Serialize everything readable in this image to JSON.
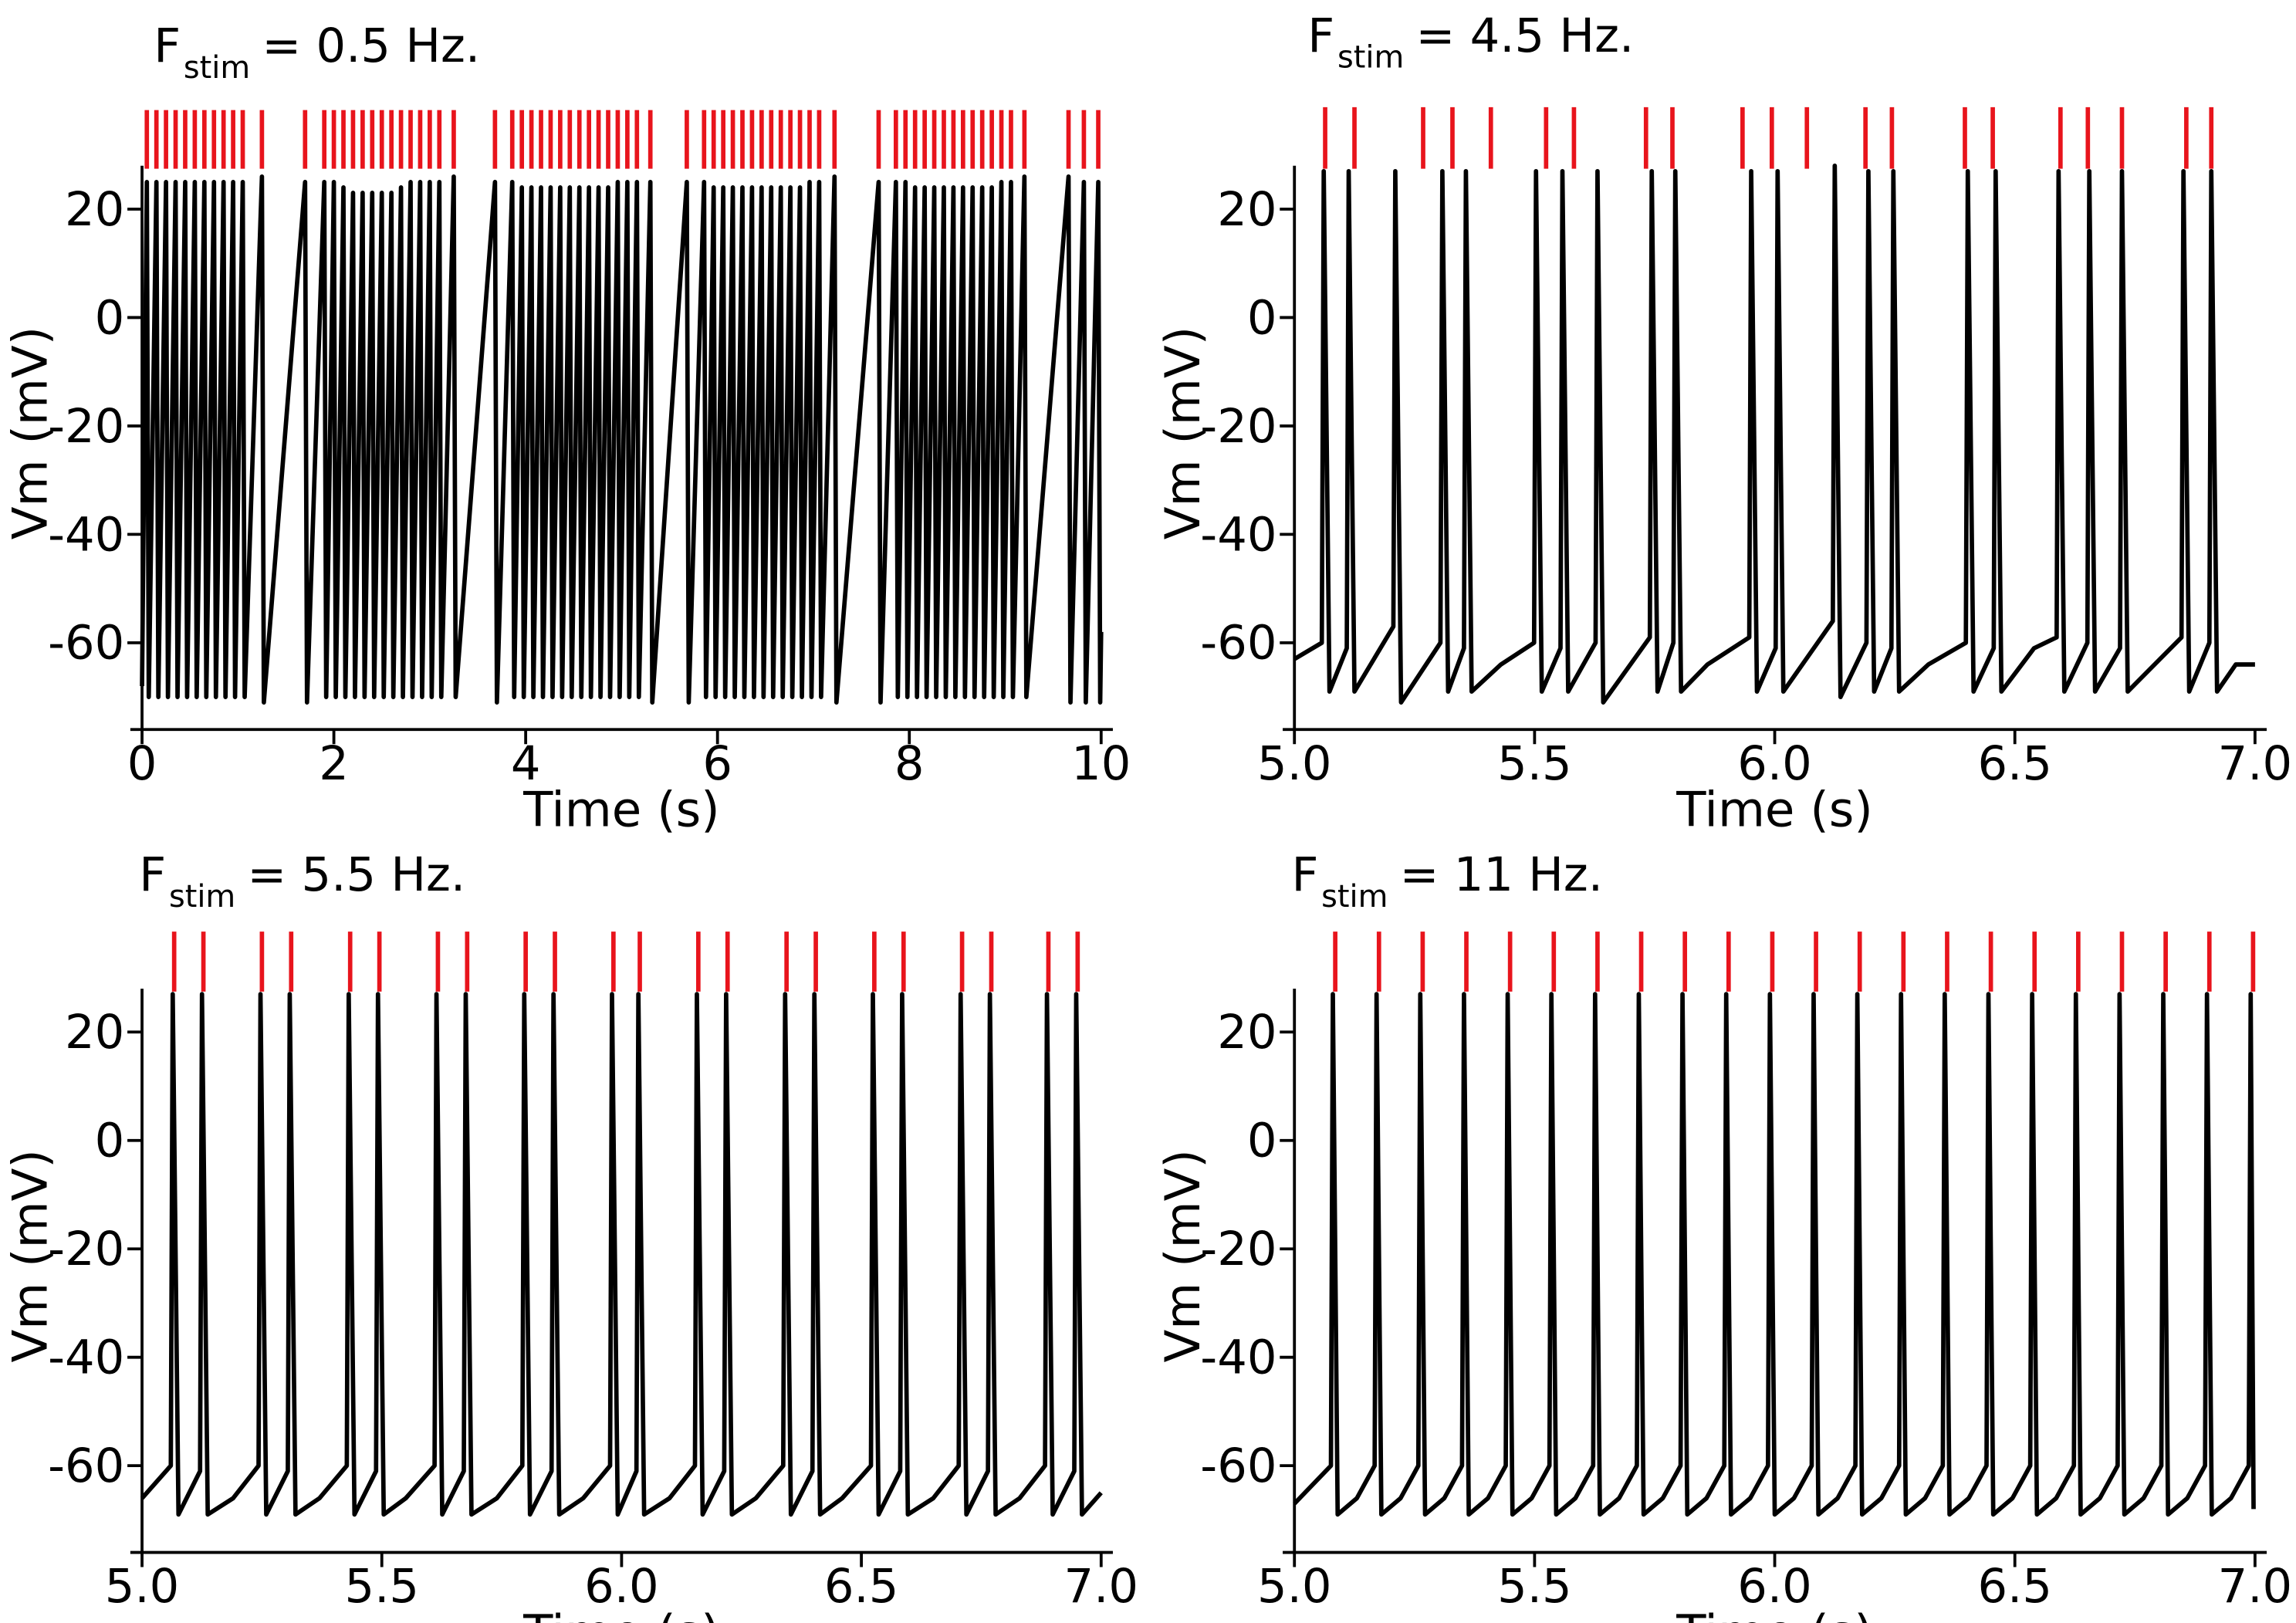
{
  "chart_data": [
    {
      "type": "line",
      "title": "F",
      "title_subscript": "stim",
      "title_suffix": "= 0.5 Hz.",
      "xlabel": "Time (s)",
      "ylabel": "Vm (mV)",
      "xlim": [
        0,
        10
      ],
      "xticks": [
        0,
        2,
        4,
        6,
        8,
        10
      ],
      "ylim": [
        -76,
        28
      ],
      "yticks": [
        -60,
        -40,
        -20,
        0,
        20
      ],
      "stim_color": "#e8141c",
      "stim_times": [
        0.05,
        0.15,
        0.25,
        0.35,
        0.45,
        0.55,
        0.65,
        0.75,
        0.85,
        0.95,
        1.05,
        1.25,
        1.7,
        1.9,
        2.0,
        2.1,
        2.2,
        2.3,
        2.4,
        2.5,
        2.6,
        2.7,
        2.8,
        2.9,
        3.0,
        3.1,
        3.25,
        3.68,
        3.86,
        3.96,
        4.06,
        4.16,
        4.26,
        4.36,
        4.46,
        4.56,
        4.66,
        4.76,
        4.86,
        4.96,
        5.06,
        5.16,
        5.3,
        5.68,
        5.86,
        5.96,
        6.06,
        6.16,
        6.26,
        6.36,
        6.46,
        6.56,
        6.66,
        6.76,
        6.86,
        6.96,
        7.06,
        7.22,
        7.68,
        7.86,
        7.96,
        8.06,
        8.16,
        8.26,
        8.36,
        8.46,
        8.56,
        8.66,
        8.76,
        8.86,
        8.96,
        9.06,
        9.2,
        9.66,
        9.82,
        9.97
      ],
      "series": [
        {
          "color": "#000000",
          "x": [
            0,
            0.05,
            0.07,
            0.15,
            0.17,
            0.25,
            0.27,
            0.35,
            0.37,
            0.45,
            0.47,
            0.55,
            0.57,
            0.65,
            0.67,
            0.75,
            0.77,
            0.85,
            0.87,
            0.95,
            0.97,
            1.05,
            1.07,
            1.25,
            1.27,
            1.7,
            1.72,
            1.9,
            1.92,
            2.0,
            2.02,
            2.1,
            2.12,
            2.2,
            2.22,
            2.3,
            2.32,
            2.4,
            2.42,
            2.5,
            2.52,
            2.6,
            2.62,
            2.7,
            2.72,
            2.8,
            2.82,
            2.9,
            2.92,
            3.0,
            3.02,
            3.1,
            3.12,
            3.25,
            3.27,
            3.68,
            3.7,
            3.86,
            3.88,
            3.96,
            3.98,
            4.06,
            4.08,
            4.16,
            4.18,
            4.26,
            4.28,
            4.36,
            4.38,
            4.46,
            4.48,
            4.56,
            4.58,
            4.66,
            4.68,
            4.76,
            4.78,
            4.86,
            4.88,
            4.96,
            4.98,
            5.06,
            5.08,
            5.16,
            5.18,
            5.3,
            5.32,
            5.68,
            5.7,
            5.86,
            5.88,
            5.96,
            5.98,
            6.06,
            6.08,
            6.16,
            6.18,
            6.26,
            6.28,
            6.36,
            6.38,
            6.46,
            6.48,
            6.56,
            6.58,
            6.66,
            6.68,
            6.76,
            6.78,
            6.86,
            6.88,
            6.96,
            6.98,
            7.06,
            7.08,
            7.22,
            7.24,
            7.68,
            7.7,
            7.86,
            7.88,
            7.96,
            7.98,
            8.06,
            8.08,
            8.16,
            8.18,
            8.26,
            8.28,
            8.36,
            8.38,
            8.46,
            8.48,
            8.56,
            8.58,
            8.66,
            8.68,
            8.76,
            8.78,
            8.86,
            8.88,
            8.96,
            8.98,
            9.06,
            9.08,
            9.2,
            9.22,
            9.66,
            9.68,
            9.82,
            9.84,
            9.97,
            9.99,
            10
          ],
          "values": [
            -68,
            25,
            -70,
            25,
            -70,
            25,
            -70,
            25,
            -70,
            25,
            -70,
            25,
            -70,
            25,
            -70,
            25,
            -70,
            25,
            -70,
            25,
            -70,
            25,
            -70,
            26,
            -71,
            25,
            -71,
            25,
            -70,
            25,
            -70,
            24,
            -70,
            23,
            -70,
            23,
            -70,
            23,
            -70,
            23,
            -70,
            23,
            -70,
            24,
            -70,
            25,
            -70,
            25,
            -70,
            25,
            -70,
            25,
            -70,
            26,
            -70,
            25,
            -71,
            25,
            -70,
            24,
            -70,
            24,
            -70,
            24,
            -70,
            24,
            -70,
            24,
            -70,
            24,
            -70,
            24,
            -70,
            24,
            -70,
            24,
            -70,
            24,
            -70,
            25,
            -70,
            25,
            -70,
            25,
            -70,
            25,
            -71,
            25,
            -71,
            25,
            -70,
            24,
            -70,
            24,
            -70,
            24,
            -70,
            24,
            -70,
            24,
            -70,
            24,
            -70,
            24,
            -70,
            24,
            -70,
            24,
            -70,
            24,
            -70,
            25,
            -70,
            25,
            -70,
            26,
            -71,
            25,
            -71,
            25,
            -70,
            25,
            -70,
            24,
            -70,
            24,
            -70,
            24,
            -70,
            24,
            -70,
            24,
            -70,
            24,
            -70,
            24,
            -70,
            24,
            -70,
            24,
            -70,
            25,
            -70,
            25,
            -70,
            26,
            -70,
            26,
            -71,
            25,
            -71,
            25,
            -71,
            -58
          ]
        }
      ]
    },
    {
      "type": "line",
      "title": "F",
      "title_subscript": "stim",
      "title_suffix": "= 4.5 Hz.",
      "xlabel": "Time (s)",
      "ylabel": "Vm (mV)",
      "xlim": [
        5,
        7
      ],
      "xticks": [
        {
          "value": 5,
          "label": "5.0"
        },
        5.5,
        {
          "value": 6,
          "label": "6.0"
        },
        6.5,
        {
          "value": 7,
          "label": "7.0"
        }
      ],
      "ylim": [
        -76,
        28
      ],
      "yticks": [
        -60,
        -40,
        -20,
        0,
        20
      ],
      "stim_color": "#e8141c",
      "stim_times": [
        5.064,
        5.125,
        5.268,
        5.329,
        5.409,
        5.524,
        5.582,
        5.732,
        5.787,
        5.933,
        5.994,
        6.067,
        6.189,
        6.244,
        6.396,
        6.454,
        6.595,
        6.652,
        6.723,
        6.857,
        6.909
      ],
      "series": [
        {
          "color": "#000000",
          "x": [
            5.0,
            5.057,
            5.061,
            5.073,
            5.109,
            5.113,
            5.125,
            5.206,
            5.21,
            5.222,
            5.304,
            5.308,
            5.32,
            5.353,
            5.357,
            5.369,
            5.43,
            5.499,
            5.503,
            5.515,
            5.554,
            5.558,
            5.57,
            5.627,
            5.631,
            5.643,
            5.74,
            5.744,
            5.756,
            5.789,
            5.793,
            5.805,
            5.86,
            5.947,
            5.951,
            5.963,
            6.002,
            6.006,
            6.018,
            6.121,
            6.125,
            6.137,
            6.191,
            6.195,
            6.207,
            6.243,
            6.247,
            6.259,
            6.32,
            6.398,
            6.402,
            6.414,
            6.456,
            6.46,
            6.472,
            6.54,
            6.587,
            6.591,
            6.603,
            6.651,
            6.655,
            6.667,
            6.719,
            6.723,
            6.735,
            6.847,
            6.851,
            6.863,
            6.905,
            6.909,
            6.921,
            6.96,
            7.0
          ],
          "values": [
            -63,
            -60,
            27,
            -69,
            -61,
            27,
            -69,
            -57,
            27,
            -71,
            -60,
            27,
            -69,
            -61,
            27,
            -69,
            -64,
            -60,
            27,
            -69,
            -61,
            27,
            -69,
            -60,
            27,
            -71,
            -59,
            27,
            -69,
            -60,
            27,
            -69,
            -64,
            -59,
            27,
            -69,
            -61,
            27,
            -69,
            -56,
            28,
            -70,
            -60,
            27,
            -69,
            -61,
            27,
            -69,
            -64,
            -60,
            27,
            -69,
            -61,
            27,
            -69,
            -61,
            -59,
            27,
            -69,
            -60,
            27,
            -69,
            -61,
            27,
            -69,
            -59,
            27,
            -69,
            -60,
            27,
            -69,
            -64,
            -64
          ]
        }
      ]
    },
    {
      "type": "line",
      "title": "F",
      "title_subscript": "stim",
      "title_suffix": "= 5.5 Hz.",
      "xlabel": "Time (s)",
      "ylabel": "Vm (mV)",
      "xlim": [
        5,
        7
      ],
      "xticks": [
        {
          "value": 5,
          "label": "5.0"
        },
        5.5,
        {
          "value": 6,
          "label": "6.0"
        },
        6.5,
        {
          "value": 7,
          "label": "7.0"
        }
      ],
      "ylim": [
        -76,
        28
      ],
      "yticks": [
        -60,
        -40,
        -20,
        0,
        20
      ],
      "stim_color": "#e8141c",
      "stim_times": [
        5.067,
        5.128,
        5.25,
        5.311,
        5.434,
        5.495,
        5.617,
        5.678,
        5.8,
        5.861,
        5.983,
        6.038,
        6.16,
        6.221,
        6.344,
        6.405,
        6.527,
        6.588,
        6.71,
        6.771,
        6.89,
        6.951
      ],
      "series": [
        {
          "color": "#000000",
          "x": [
            5.0,
            5.06,
            5.064,
            5.076,
            5.121,
            5.125,
            5.137,
            5.19,
            5.243,
            5.247,
            5.259,
            5.304,
            5.308,
            5.32,
            5.37,
            5.427,
            5.431,
            5.443,
            5.488,
            5.492,
            5.504,
            5.55,
            5.61,
            5.614,
            5.626,
            5.671,
            5.675,
            5.687,
            5.74,
            5.793,
            5.797,
            5.809,
            5.854,
            5.858,
            5.87,
            5.92,
            5.976,
            5.98,
            5.992,
            6.031,
            6.035,
            6.047,
            6.1,
            6.153,
            6.157,
            6.169,
            6.214,
            6.218,
            6.23,
            6.28,
            6.337,
            6.341,
            6.353,
            6.398,
            6.402,
            6.414,
            6.46,
            6.52,
            6.524,
            6.536,
            6.581,
            6.585,
            6.597,
            6.65,
            6.703,
            6.707,
            6.719,
            6.764,
            6.768,
            6.78,
            6.83,
            6.883,
            6.887,
            6.899,
            6.944,
            6.948,
            6.96,
            7.0
          ],
          "values": [
            -66,
            -60,
            27,
            -69,
            -61,
            27,
            -69,
            -66,
            -60,
            27,
            -69,
            -61,
            27,
            -69,
            -66,
            -60,
            27,
            -69,
            -61,
            27,
            -69,
            -66,
            -60,
            27,
            -69,
            -61,
            27,
            -69,
            -66,
            -60,
            27,
            -69,
            -61,
            27,
            -69,
            -66,
            -60,
            27,
            -69,
            -61,
            27,
            -69,
            -66,
            -60,
            27,
            -69,
            -61,
            27,
            -69,
            -66,
            -60,
            27,
            -69,
            -61,
            27,
            -69,
            -66,
            -60,
            27,
            -69,
            -61,
            27,
            -69,
            -66,
            -60,
            27,
            -69,
            -61,
            27,
            -69,
            -66,
            -60,
            27,
            -69,
            -61,
            27,
            -69,
            -65
          ]
        }
      ]
    },
    {
      "type": "line",
      "title": "F",
      "title_subscript": "stim",
      "title_suffix": "= 11 Hz.",
      "xlabel": "Time (s)",
      "ylabel": "Vm (mV)",
      "xlim": [
        5,
        7
      ],
      "xticks": [
        {
          "value": 5,
          "label": "5.0"
        },
        5.5,
        {
          "value": 6,
          "label": "6.0"
        },
        6.5,
        {
          "value": 7,
          "label": "7.0"
        }
      ],
      "ylim": [
        -76,
        28
      ],
      "yticks": [
        -60,
        -40,
        -20,
        0,
        20
      ],
      "stim_color": "#e8141c",
      "stim_times": [
        5.085,
        5.176,
        5.267,
        5.358,
        5.449,
        5.54,
        5.631,
        5.722,
        5.813,
        5.904,
        5.995,
        6.086,
        6.177,
        6.268,
        6.359,
        6.45,
        6.541,
        6.632,
        6.723,
        6.814,
        6.905,
        6.996
      ],
      "series": [
        {
          "color": "#000000",
          "x": [
            5.0,
            5.076,
            5.08,
            5.09,
            5.13,
            5.167,
            5.171,
            5.181,
            5.221,
            5.258,
            5.262,
            5.272,
            5.312,
            5.349,
            5.353,
            5.363,
            5.403,
            5.44,
            5.444,
            5.454,
            5.494,
            5.531,
            5.535,
            5.545,
            5.585,
            5.622,
            5.626,
            5.636,
            5.676,
            5.713,
            5.717,
            5.727,
            5.767,
            5.804,
            5.808,
            5.818,
            5.858,
            5.895,
            5.899,
            5.909,
            5.949,
            5.986,
            5.99,
            6.0,
            6.04,
            6.077,
            6.081,
            6.091,
            6.131,
            6.168,
            6.172,
            6.182,
            6.222,
            6.259,
            6.263,
            6.273,
            6.313,
            6.35,
            6.354,
            6.364,
            6.404,
            6.441,
            6.445,
            6.455,
            6.495,
            6.532,
            6.536,
            6.546,
            6.586,
            6.623,
            6.627,
            6.637,
            6.677,
            6.714,
            6.718,
            6.728,
            6.768,
            6.805,
            6.809,
            6.819,
            6.859,
            6.896,
            6.9,
            6.91,
            6.95,
            6.987,
            6.991,
            6.997
          ],
          "values": [
            -67,
            -60,
            27,
            -69,
            -66,
            -60,
            27,
            -69,
            -66,
            -60,
            27,
            -69,
            -66,
            -60,
            27,
            -69,
            -66,
            -60,
            27,
            -69,
            -66,
            -60,
            27,
            -69,
            -66,
            -60,
            27,
            -69,
            -66,
            -60,
            27,
            -69,
            -66,
            -60,
            27,
            -69,
            -66,
            -60,
            27,
            -69,
            -66,
            -60,
            27,
            -69,
            -66,
            -60,
            27,
            -69,
            -66,
            -60,
            27,
            -69,
            -66,
            -60,
            27,
            -69,
            -66,
            -60,
            27,
            -69,
            -66,
            -60,
            27,
            -69,
            -66,
            -60,
            27,
            -69,
            -66,
            -60,
            27,
            -69,
            -66,
            -60,
            27,
            -69,
            -66,
            -60,
            27,
            -69,
            -66,
            -60,
            27,
            -69,
            -66,
            -60,
            27,
            -68
          ]
        }
      ]
    }
  ]
}
